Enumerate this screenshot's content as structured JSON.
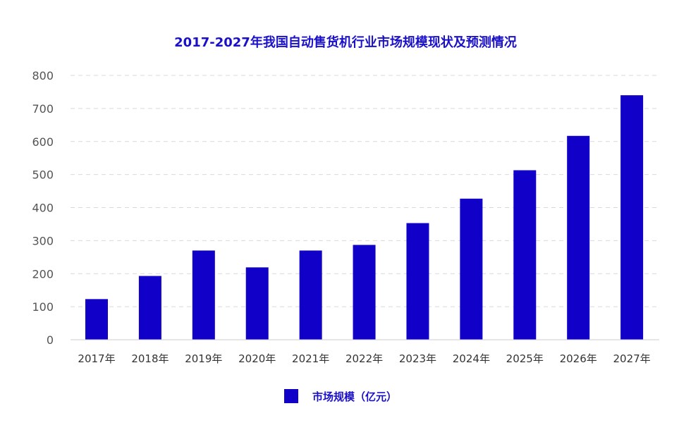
{
  "chart_data": {
    "type": "bar",
    "title": "2017-2027年我国自动售货机行业市场规模现状及预测情况",
    "categories": [
      "2017年",
      "2018年",
      "2019年",
      "2020年",
      "2021年",
      "2022年",
      "2023年",
      "2024年",
      "2025年",
      "2026年",
      "2027年"
    ],
    "series": [
      {
        "name": "市场规模（亿元）",
        "values": [
          123,
          193,
          270,
          219,
          270,
          287,
          353,
          427,
          513,
          617,
          740
        ]
      }
    ],
    "yticks": [
      0,
      100,
      200,
      300,
      400,
      500,
      600,
      700,
      800
    ],
    "ylim": [
      0,
      800
    ],
    "grid": true,
    "legend": "bottom-center",
    "colors": {
      "bar": "#1000c8",
      "title": "#1a10c8",
      "grid": "#d9d9d9",
      "tick": "#333333"
    }
  }
}
